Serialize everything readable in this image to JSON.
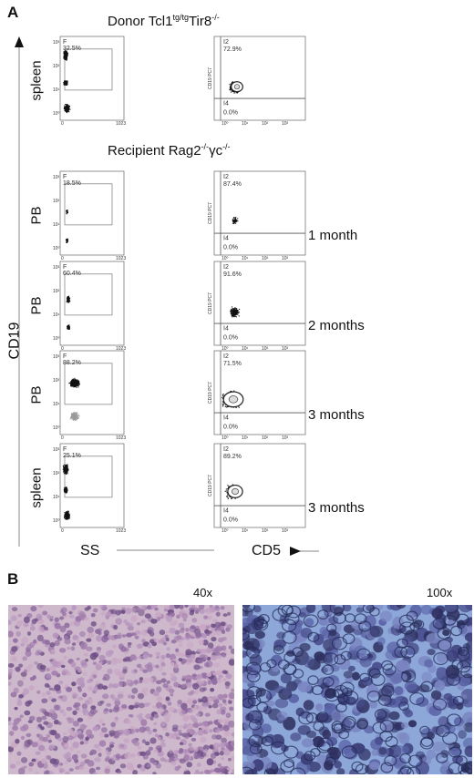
{
  "panelA": {
    "letter": "A",
    "donor_title_prefix": "Donor Tcl1",
    "donor_title_sup1": "tg/tg",
    "donor_title_mid": "Tir8",
    "donor_title_sup2": "-/-",
    "recipient_title_prefix": "Recipient Rag2",
    "recipient_title_sup1": "-/-",
    "recipient_title_mid": "γc",
    "recipient_title_sup2": "-/-",
    "y_axis": "CD19",
    "x_axis_left": "SS",
    "x_axis_right": "CD5",
    "rows": [
      {
        "tissue": "spleen",
        "time": "",
        "gate_F": "32.5%",
        "gate_2": "72.9%",
        "gate_4": "0.0%",
        "ylabel_right": "CD19 PC7"
      },
      {
        "tissue": "PB",
        "time": "1 month",
        "gate_F": "18.5%",
        "gate_2": "87.4%",
        "gate_4": "0.0%",
        "ylabel_right": "CD19 PC7"
      },
      {
        "tissue": "PB",
        "time": "2 months",
        "gate_F": "60.4%",
        "gate_2": "91.6%",
        "gate_4": "0.0%",
        "ylabel_right": "CD19 PC7"
      },
      {
        "tissue": "PB",
        "time": "3 months",
        "gate_F": "88.2%",
        "gate_2": "71.5%",
        "gate_4": "0.0%",
        "ylabel_right": "CD19 PC7"
      },
      {
        "tissue": "spleen",
        "time": "3 months",
        "gate_F": "25.1%",
        "gate_2": "89.2%",
        "gate_4": "0.0%",
        "ylabel_right": "CD19 PC7"
      }
    ],
    "gate_letter_left": "F",
    "gate_num_top": "I2",
    "gate_num_bottom": "I4",
    "ss_tick_start": "0",
    "ss_tick_end": "1023",
    "log_ticks": [
      "10⁰",
      "10¹",
      "10²",
      "10³"
    ]
  },
  "panelB": {
    "letter": "B",
    "left_label": "40x",
    "right_label": "100x"
  }
}
